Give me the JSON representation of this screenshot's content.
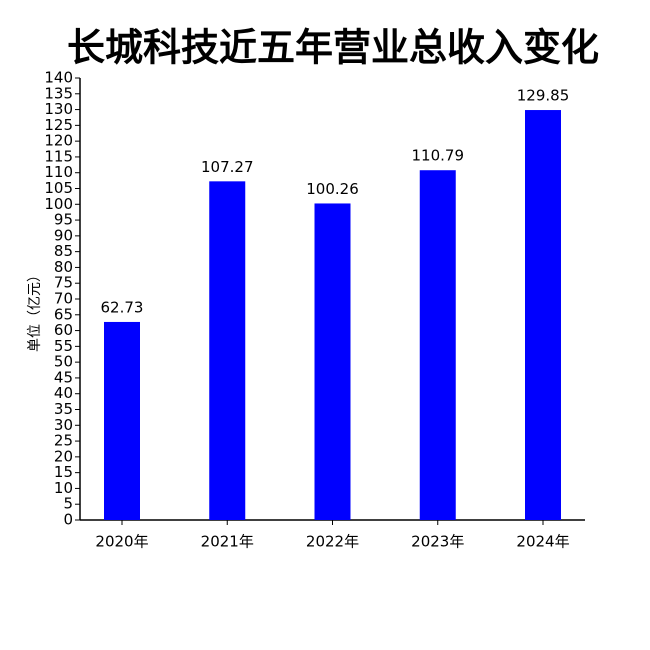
{
  "chart_data": {
    "type": "bar",
    "title": "长城科技近五年营业总收入变化",
    "y_label": "单位（亿元）",
    "categories": [
      "2020年",
      "2021年",
      "2022年",
      "2023年",
      "2024年"
    ],
    "values": [
      62.73,
      107.27,
      100.26,
      110.79,
      129.85
    ],
    "color": "#0000ff",
    "ylim": [
      0,
      140
    ],
    "yticks": [
      0,
      5,
      10,
      15,
      20,
      25,
      30,
      35,
      40,
      45,
      50,
      55,
      60,
      65,
      70,
      75,
      80,
      85,
      90,
      95,
      100,
      105,
      110,
      115,
      120,
      125,
      130,
      135,
      140
    ],
    "grid": false
  }
}
